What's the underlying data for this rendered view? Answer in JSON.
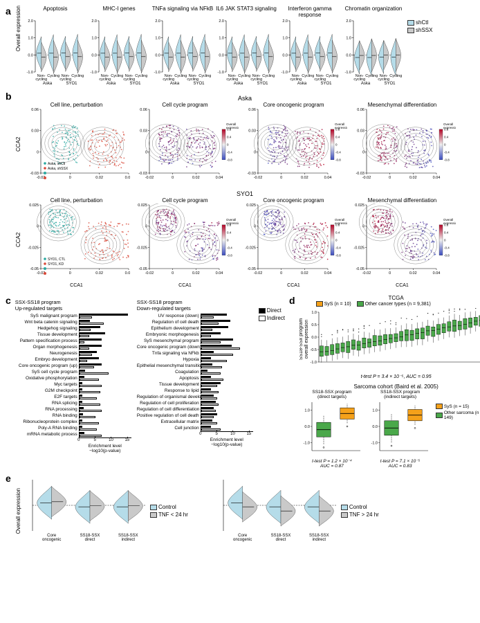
{
  "colors": {
    "shCtl": "#b5dce9",
    "shSSX": "#c9c9c9",
    "aska_ctl": "#2aa8a0",
    "aska_kd": "#d94a3a",
    "syo_ctl": "#2aa8a0",
    "syo_kd": "#d94a3a",
    "expr_low": "#3b4cc0",
    "expr_high": "#b40426",
    "direct": "#000000",
    "indirect": "#ffffff",
    "sys_box": "#f5a11a",
    "other_box": "#4aa84a",
    "tnf_ctl": "#b5dce9",
    "tnf_over": "#c9c9c9",
    "tnf_under_ctl": "#b5dce9",
    "tnf_under": "#c9c9c9"
  },
  "panelA": {
    "ylabel": "Overall expression",
    "legend": [
      "shCtl",
      "shSSX"
    ],
    "titles": [
      "Apoptosis",
      "MHC-I genes",
      "TNFa signaling via NFkB",
      "IL6 JAK STAT3 signaling",
      "Interferon gamma response",
      "Chromatin organization"
    ],
    "x_groups": [
      "Non-cycling",
      "Cycling",
      "Non-cycling",
      "Cycling"
    ],
    "x_lines": [
      "Aska",
      "SYO1"
    ],
    "ylim": [
      -1.0,
      2.0
    ],
    "yticks": [
      -1.0,
      0.0,
      1.0,
      2.0
    ]
  },
  "panelB": {
    "ylabel": "CCA2",
    "xlabel": "CCA1",
    "rows": [
      "Aska",
      "SYO1"
    ],
    "titles": [
      "Cell line, perturbation",
      "Cell cycle program",
      "Core oncogenic program",
      "Mesenchymal differentiation"
    ],
    "aska_xlim": [
      -0.02,
      0.04
    ],
    "aska_ylim": [
      -0.03,
      0.06
    ],
    "aska_xticks": [
      -0.02,
      0,
      0.02,
      0.04
    ],
    "aska_yticks": [
      -0.03,
      0,
      0.03,
      0.06
    ],
    "syo_xlim": [
      -0.02,
      0.04
    ],
    "syo_ylim": [
      -0.05,
      0.025
    ],
    "syo_xticks": [
      -0.02,
      0,
      0.02,
      0.04
    ],
    "syo_yticks": [
      -0.05,
      -0.025,
      0,
      0.025
    ],
    "legend_aska": [
      "Aska, shCtl",
      "Aska, shSSX"
    ],
    "legend_syo": [
      "SYO1, CTL",
      "SYO1, KD"
    ],
    "gradient_label": "Overall expression",
    "gradient_ticks": [
      -0.8,
      -0.4,
      0,
      0.4,
      0.8
    ]
  },
  "panelC": {
    "xlabel": "Enrichment level\n−log10(p-value)",
    "xlim": [
      0,
      15
    ],
    "xticks": [
      0,
      5,
      10,
      15
    ],
    "legend": [
      "Direct",
      "Indirect"
    ],
    "up": {
      "title": "SSX-SS18 program\nUp-regulated targets",
      "items": [
        {
          "l": "SyS malignant program",
          "d": 15,
          "i": 4
        },
        {
          "l": "Wnt beta catenin signaling",
          "d": 3.2,
          "i": 7.5
        },
        {
          "l": "Hedgehog signaling",
          "d": 6.5,
          "i": 3.5
        },
        {
          "l": "Tissue development",
          "d": 8,
          "i": 3
        },
        {
          "l": "Pattern specification process",
          "d": 7,
          "i": 1.5
        },
        {
          "l": "Organ morphogenesis",
          "d": 7,
          "i": 3
        },
        {
          "l": "Neurogenesis",
          "d": 5.5,
          "i": 4
        },
        {
          "l": "Embryo development",
          "d": 6,
          "i": 2.5
        },
        {
          "l": "Core oncogenic program (up)",
          "d": 7,
          "i": 4.5
        },
        {
          "l": "SyS cell cycle program",
          "d": 1.8,
          "i": 9
        },
        {
          "l": "Oxidative phosphorylation",
          "d": 1.5,
          "i": 6
        },
        {
          "l": "Myc targets",
          "d": 1,
          "i": 7
        },
        {
          "l": "G2M checkpoint",
          "d": 1,
          "i": 6.5
        },
        {
          "l": "E2F targets",
          "d": 1,
          "i": 5.5
        },
        {
          "l": "RNA splicing",
          "d": 1,
          "i": 6.5
        },
        {
          "l": "RNA processing",
          "d": 1.3,
          "i": 7
        },
        {
          "l": "RNA binding",
          "d": 1.2,
          "i": 5
        },
        {
          "l": "Ribonucleoprotein complex",
          "d": 1,
          "i": 6
        },
        {
          "l": "Poly-A RNA binding",
          "d": 1,
          "i": 5.5
        },
        {
          "l": "mRNA metabolic process",
          "d": 1.5,
          "i": 7
        }
      ]
    },
    "down": {
      "title": "SSX-SS18 program\nDown-regulated targets",
      "items": [
        {
          "l": "UV response (down)",
          "d": 8,
          "i": 4
        },
        {
          "l": "Regulation of cell death",
          "d": 9,
          "i": 5.5
        },
        {
          "l": "Epithelium development",
          "d": 8.5,
          "i": 3.5
        },
        {
          "l": "Embryonic morphogenesis",
          "d": 6,
          "i": 3
        },
        {
          "l": "SyS mesenchymal program",
          "d": 10,
          "i": 6
        },
        {
          "l": "Core oncogenic program (down)",
          "d": 9.5,
          "i": 12
        },
        {
          "l": "Tnfa signaling via NFkb",
          "d": 4,
          "i": 10
        },
        {
          "l": "Hypoxia",
          "d": 3,
          "i": 8
        },
        {
          "l": "Epithelial mesenchymal transition",
          "d": 3.5,
          "i": 6.5
        },
        {
          "l": "Coagulation",
          "d": 2,
          "i": 6
        },
        {
          "l": "Apoptosis",
          "d": 3,
          "i": 7
        },
        {
          "l": "Tissue development",
          "d": 6,
          "i": 5
        },
        {
          "l": "Response to lipid",
          "d": 3,
          "i": 5.5
        },
        {
          "l": "Regulation of organismal development",
          "d": 4,
          "i": 5
        },
        {
          "l": "Regulation of cell proliferation",
          "d": 4.5,
          "i": 5.5
        },
        {
          "l": "Regulation of cell differentiation",
          "d": 4,
          "i": 4.5
        },
        {
          "l": "Positive regulation of cell death",
          "d": 5,
          "i": 4
        },
        {
          "l": "Extracellular matrix",
          "d": 3.5,
          "i": 5
        },
        {
          "l": "Cell junction",
          "d": 3,
          "i": 6
        }
      ]
    }
  },
  "panelD": {
    "top": {
      "title": "TCGA",
      "legend": [
        {
          "label": "SyS (n = 10)",
          "color": "#f5a11a"
        },
        {
          "label": "Other cancer types (n = 9,381)",
          "color": "#4aa84a"
        }
      ],
      "ylabel": "SS18-SSx program\noverall expression",
      "ylim": [
        -1.0,
        1.0
      ],
      "yticks": [
        -1.0,
        -0.5,
        0,
        0.5,
        1.0
      ],
      "n_boxes": 32,
      "stats": "t-test P = 3.4 × 10⁻⁵, AUC = 0.95"
    },
    "bottom": {
      "title": "Sarcoma cohort (Baird et al. 2005)",
      "legend": [
        {
          "label": "SyS (n = 15)",
          "color": "#f5a11a"
        },
        {
          "label": "Other sarcoma (n = 149)",
          "color": "#4aa84a"
        }
      ],
      "plots": [
        {
          "title": "SS18-SSX program\n(direct targets)",
          "stats": "t-test P = 1.2 × 10⁻⁴\nAUC = 0.87",
          "ylim": [
            -1.5,
            1.5
          ],
          "other_med": -0.2,
          "sys_med": 0.8
        },
        {
          "title": "SS18-SSX program\n(indirect targets)",
          "stats": "t-test P = 7.1 × 10⁻⁵\nAUC = 0.83",
          "ylim": [
            -1.5,
            1.5
          ],
          "other_med": -0.1,
          "sys_med": 0.7
        }
      ]
    }
  },
  "panelE": {
    "ylabel": "Overall expression",
    "legends": [
      [
        "Control",
        "TNF < 24 hr"
      ],
      [
        "Control",
        "TNF > 24 hr"
      ]
    ],
    "x_labels": [
      "Core\noncogenic",
      "SS18-SSX\ndirect",
      "SS18-SSX\nindirect"
    ],
    "ylim": [
      -0.5,
      0.5
    ]
  }
}
